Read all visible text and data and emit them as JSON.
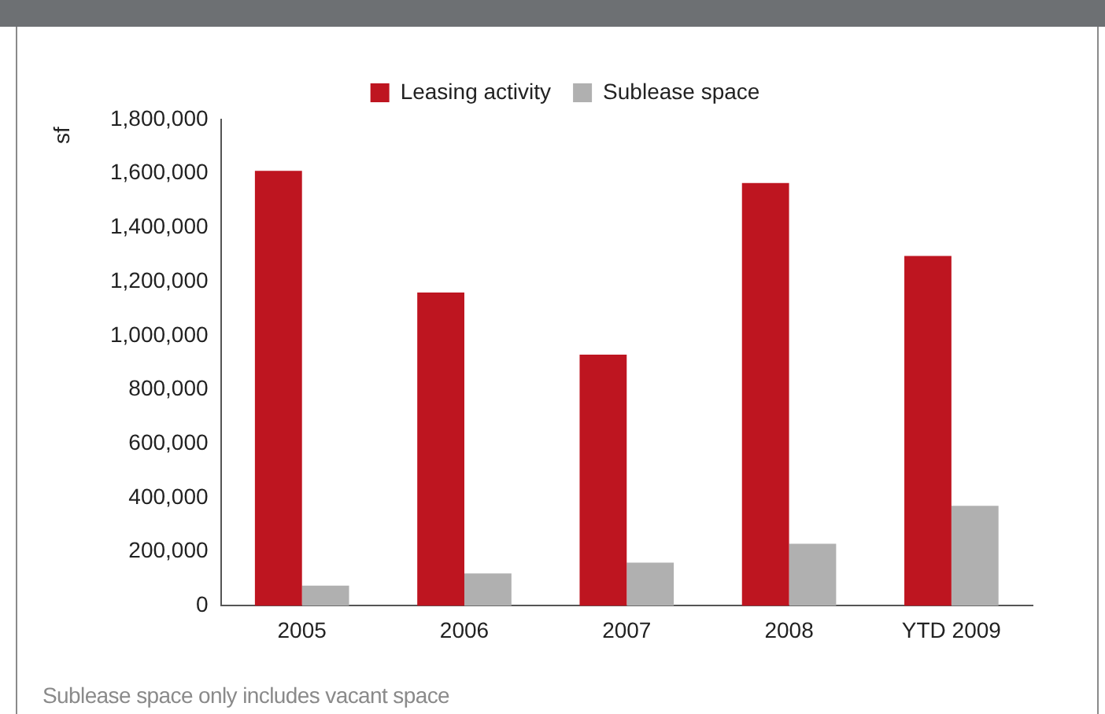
{
  "chart_data": {
    "type": "bar",
    "ylabel": "sf",
    "categories": [
      "2005",
      "2006",
      "2007",
      "2008",
      "YTD 2009"
    ],
    "series": [
      {
        "name": "Leasing activity",
        "color": "#be1520",
        "values": [
          1610000,
          1160000,
          930000,
          1565000,
          1295000
        ]
      },
      {
        "name": "Sublease space",
        "color": "#b0b0b0",
        "values": [
          75000,
          120000,
          160000,
          230000,
          370000
        ]
      }
    ],
    "ylim": [
      0,
      1800000
    ],
    "yticks": [
      0,
      {
        "value": 200000,
        "label": "200,000"
      },
      {
        "value": 400000,
        "label": "400,000"
      },
      {
        "value": 600000,
        "label": "600,000"
      },
      {
        "value": 800000,
        "label": "800,000"
      },
      {
        "value": 1000000,
        "label": "1,000,000"
      },
      {
        "value": 1200000,
        "label": "1,200,000"
      },
      {
        "value": 1400000,
        "label": "1,400,000"
      },
      {
        "value": 1600000,
        "label": "1,600,000"
      },
      {
        "value": 1800000,
        "label": "1,800,000"
      }
    ],
    "grid": false,
    "legend": "top",
    "annotations": [
      "Sublease space only includes vacant space"
    ]
  }
}
